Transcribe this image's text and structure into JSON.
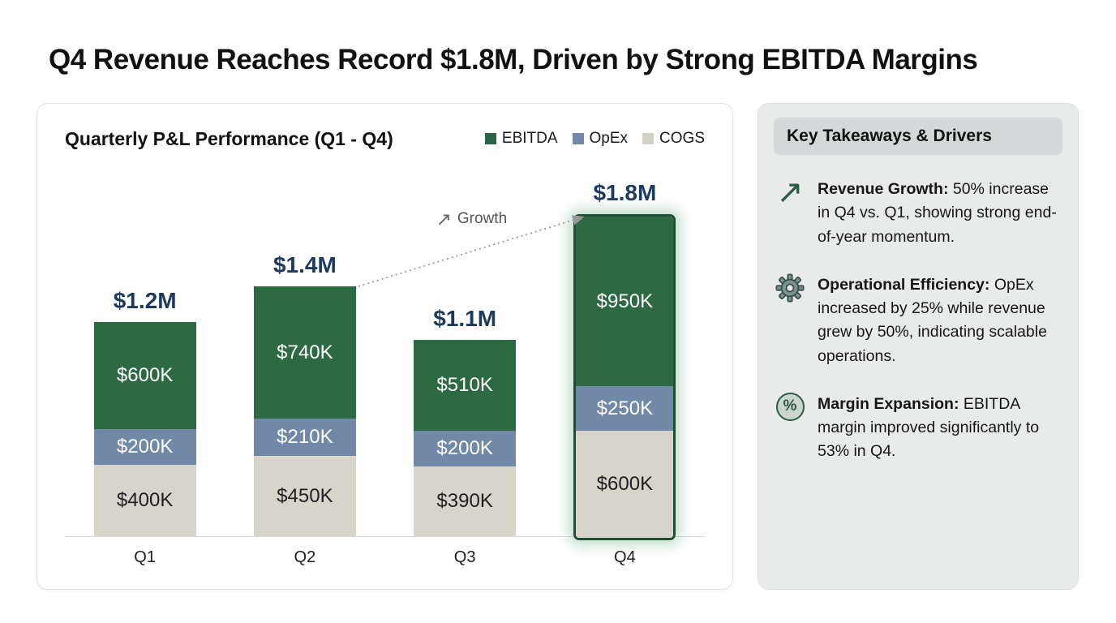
{
  "page_title": "Q4 Revenue Reaches Record $1.8M, Driven by Strong EBITDA Margins",
  "chart": {
    "title": "Quarterly P&L Performance (Q1 - Q4)",
    "legend": [
      {
        "label": "EBITDA",
        "color": "#2d6345"
      },
      {
        "label": "OpEx",
        "color": "#7189a6"
      },
      {
        "label": "COGS",
        "color": "#d2d0c5"
      }
    ]
  },
  "chart_data": {
    "type": "bar",
    "stacked": true,
    "categories": [
      "Q1",
      "Q2",
      "Q3",
      "Q4"
    ],
    "series": [
      {
        "name": "EBITDA",
        "color": "#2d6a44",
        "values_k": [
          600,
          740,
          510,
          950
        ]
      },
      {
        "name": "OpEx",
        "color": "#7189a6",
        "values_k": [
          200,
          210,
          200,
          250
        ]
      },
      {
        "name": "COGS",
        "color": "#d7d4c9",
        "values_k": [
          400,
          450,
          390,
          600
        ]
      }
    ],
    "totals": [
      "$1.2M",
      "$1.4M",
      "$1.1M",
      "$1.8M"
    ],
    "segment_labels": [
      [
        "$600K",
        "$200K",
        "$400K"
      ],
      [
        "$740K",
        "$210K",
        "$450K"
      ],
      [
        "$510K",
        "$200K",
        "$390K"
      ],
      [
        "$950K",
        "$250K",
        "$600K"
      ]
    ],
    "highlighted_category": "Q4",
    "annotation": {
      "arrow_glyph": "↗",
      "label": "Growth"
    },
    "ylabel": "",
    "xlabel": "",
    "grid": false,
    "legend_position": "top-right"
  },
  "takeaways": {
    "header": "Key Takeaways & Drivers",
    "items": [
      {
        "icon": "trend-up-arrow-icon",
        "glyph": "↗",
        "title": "Revenue Growth:",
        "text": "50% increase in Q4 vs. Q1, showing strong end-of-year momentum."
      },
      {
        "icon": "gear-icon",
        "glyph": "",
        "title": "Operational Efficiency:",
        "text": "OpEx increased by 25% while revenue grew by 50%, indicating scalable operations."
      },
      {
        "icon": "percent-circle-icon",
        "glyph": "%",
        "title": "Margin Expansion:",
        "text": "EBITDA margin improved significantly to 53% in Q4."
      }
    ]
  },
  "colors": {
    "ebitda": "#2d6a44",
    "opex": "#7189a6",
    "cogs": "#d7d4c9",
    "total_label": "#1c3a5e",
    "highlight_border": "#1e4f35",
    "panel_bg": "#e8ebea",
    "header_box_bg": "#d3d9d8",
    "accent_green": "#2e5a45"
  }
}
